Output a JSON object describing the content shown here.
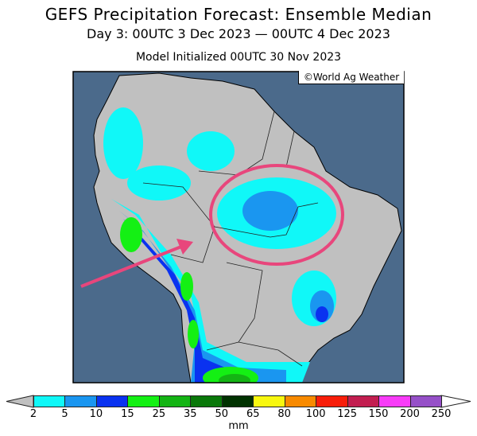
{
  "title": "GEFS Precipitation Forecast: Ensemble Median",
  "subtitle": "Day 3: 00UTC 3 Dec 2023 — 00UTC 4 Dec 2023",
  "initialized": "Model Initialized 00UTC 30 Nov 2023",
  "credit": "©World Ag Weather",
  "colorbar": {
    "unit": "mm",
    "below_color": "#c0c0c0",
    "above_color": "#ffffff",
    "labels": [
      "2",
      "5",
      "10",
      "15",
      "25",
      "35",
      "50",
      "65",
      "80",
      "100",
      "125",
      "150",
      "200",
      "250"
    ],
    "colors": [
      "#10f8f8",
      "#1a96f0",
      "#0a32f0",
      "#14f014",
      "#14b414",
      "#0a780a",
      "#003200",
      "#f8f810",
      "#f88a00",
      "#f81e0a",
      "#c21e50",
      "#f83cf8",
      "#9650c8"
    ]
  },
  "annotations": {
    "ellipse_color": "#e8467c",
    "arrow_color": "#e8467c"
  },
  "colors": {
    "ocean": "#4b6a8b",
    "land": "#c0c0c0"
  }
}
